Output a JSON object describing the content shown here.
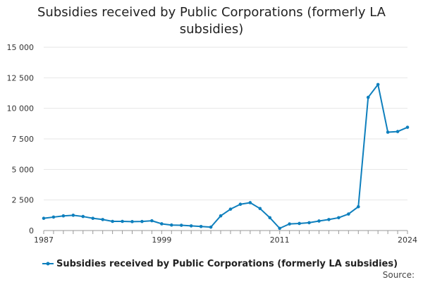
{
  "title": "Subsidies received by Public Corporations (formerly LA subsidies)",
  "source_label": "Source:",
  "colors": {
    "series": "#0e7fbd",
    "grid": "#e6e6e6",
    "axis": "#999999"
  },
  "chart_data": {
    "type": "line",
    "title": "Subsidies received by Public Corporations (formerly LA subsidies)",
    "xlabel": "",
    "ylabel": "",
    "grid": true,
    "legend": "bottom",
    "ylim": [
      0,
      15000
    ],
    "y_ticks": [
      0,
      2500,
      5000,
      7500,
      10000,
      12500,
      15000
    ],
    "y_tick_labels": [
      "0",
      "2 500",
      "5 000",
      "7 500",
      "10 000",
      "12 500",
      "15 000"
    ],
    "x_tick_labels": [
      "1987",
      "1999",
      "2011",
      "2024"
    ],
    "x": [
      1987,
      1988,
      1989,
      1990,
      1991,
      1992,
      1993,
      1994,
      1995,
      1996,
      1997,
      1998,
      1999,
      2000,
      2001,
      2002,
      2003,
      2004,
      2005,
      2006,
      2007,
      2008,
      2009,
      2010,
      2011,
      2012,
      2013,
      2014,
      2015,
      2016,
      2017,
      2018,
      2019,
      2020,
      2021,
      2022,
      2023,
      2024
    ],
    "series": [
      {
        "name": "Subsidies received by Public Corporations (formerly LA subsidies)",
        "values": [
          1000,
          1100,
          1200,
          1250,
          1150,
          1000,
          900,
          750,
          750,
          730,
          740,
          800,
          550,
          450,
          430,
          380,
          330,
          280,
          1200,
          1750,
          2150,
          2280,
          1800,
          1050,
          180,
          540,
          580,
          640,
          780,
          900,
          1050,
          1350,
          1950,
          10900,
          11950,
          8050,
          8100,
          8450
        ]
      }
    ]
  }
}
